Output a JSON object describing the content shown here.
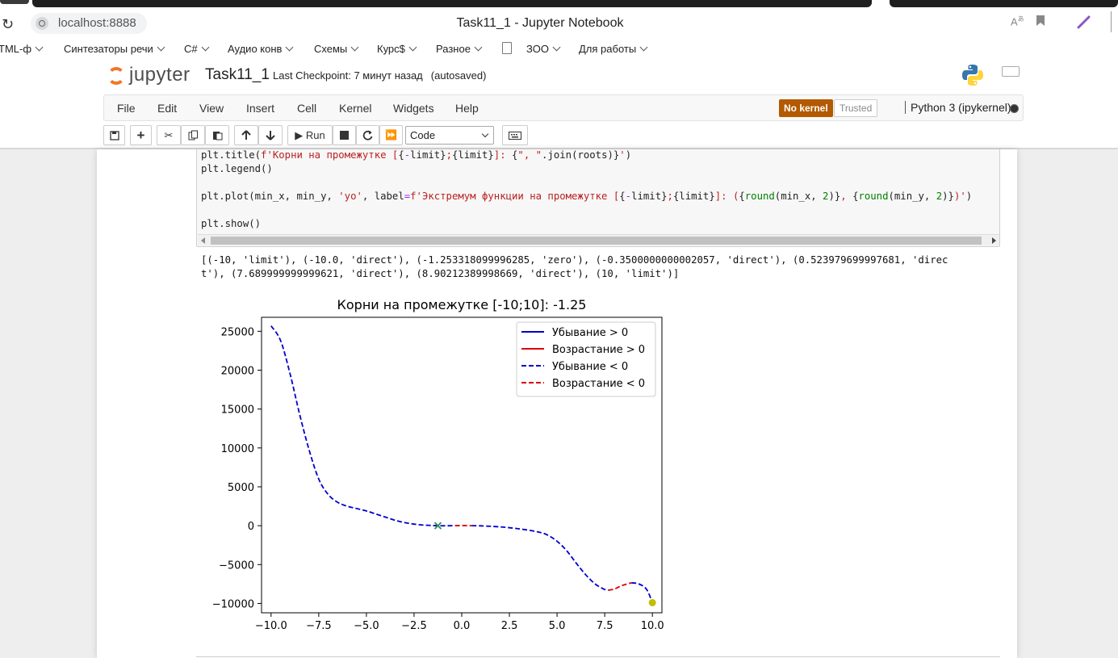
{
  "browser": {
    "url": "localhost:8888",
    "window_title": "Task11_1 - Jupyter Notebook",
    "bookmarks": [
      {
        "label": "ТML-ф",
        "dropdown": true
      },
      {
        "label": "Синтезаторы речи",
        "dropdown": true
      },
      {
        "label": "C#",
        "dropdown": true
      },
      {
        "label": "Аудио конв",
        "dropdown": true
      },
      {
        "label": "Схемы",
        "dropdown": true
      },
      {
        "label": "Курс$",
        "dropdown": true
      },
      {
        "label": "Разное",
        "dropdown": true
      },
      {
        "label": "ЗОО",
        "dropdown": true
      },
      {
        "label": "Для работы",
        "dropdown": true
      }
    ]
  },
  "jupyter": {
    "logo_text": "jupyter",
    "notebook_name": "Task11_1",
    "checkpoint": "Last Checkpoint: 7 минут назад",
    "autosaved": "(autosaved)",
    "menu": [
      "File",
      "Edit",
      "View",
      "Insert",
      "Cell",
      "Kernel",
      "Widgets",
      "Help"
    ],
    "no_kernel": "No kernel",
    "trusted": "Trusted",
    "kernel_name": "Python 3 (ipykernel)",
    "toolbar": {
      "run_label": "Run",
      "cell_type": "Code"
    }
  },
  "code_lines": [
    "plt.title(f'Корни на промежутке [{-limit};{limit}]: {\", \".join(roots)}')",
    "plt.legend()",
    "",
    "plt.plot(min_x, min_y, 'yo', label=f'Экстремум функции на промежутке [{-limit};{limit}]: ({round(min_x, 2)}, {round(min_y, 2)})')",
    "",
    "plt.show()"
  ],
  "output_lines": [
    "[(-10, 'limit'), (-10.0, 'direct'), (-1.253318099996285, 'zero'), (-0.3500000000002057, 'direct'), (0.523979699997681, 'direc",
    "t'), (7.689999999999621, 'direct'), (8.90212389998669, 'direct'), (10, 'limit')]"
  ],
  "chart_data": {
    "type": "line",
    "title": "Корни на промежутке [-10;10]: -1.25",
    "xlim": [
      -10.5,
      10.5
    ],
    "ylim": [
      -11200,
      26800
    ],
    "xticks": [
      -10.0,
      -7.5,
      -5.0,
      -2.5,
      0.0,
      2.5,
      5.0,
      7.5,
      10.0
    ],
    "xtick_labels": [
      "−10.0",
      "−7.5",
      "−5.0",
      "−2.5",
      "0.0",
      "2.5",
      "5.0",
      "7.5",
      "10.0"
    ],
    "yticks": [
      25000,
      20000,
      15000,
      10000,
      5000,
      0,
      -5000,
      -10000
    ],
    "ytick_labels": [
      "25000",
      "20000",
      "15000",
      "10000",
      "5000",
      "0",
      "−5000",
      "−10000"
    ],
    "grid": false,
    "legend_position": "top-right",
    "legend": [
      {
        "label": "Убывание > 0",
        "color": "#0000cc",
        "dash": "solid"
      },
      {
        "label": "Возрастание > 0",
        "color": "#dd0000",
        "dash": "solid"
      },
      {
        "label": "Убывание < 0",
        "color": "#0000cc",
        "dash": "dashed"
      },
      {
        "label": "Возрастание < 0",
        "color": "#dd0000",
        "dash": "dashed"
      }
    ],
    "series": [
      {
        "name": "Убывание < 0",
        "color": "#0000cc",
        "dash": "dashed",
        "x": [
          -10,
          -9.5,
          -9.0,
          -8.5,
          -8.0,
          -7.5,
          -7.0,
          -6.5,
          -6.0,
          -5.5,
          -5.0,
          -4.5,
          -4.0,
          -3.5,
          -3.0,
          -2.5,
          -2.0,
          -1.5,
          -1.25,
          -1.0,
          -0.35
        ],
        "y": [
          25700,
          23800,
          19500,
          14300,
          9700,
          6000,
          4000,
          3000,
          2500,
          2200,
          1900,
          1500,
          1100,
          700,
          400,
          200,
          80,
          20,
          0,
          -10,
          5
        ]
      },
      {
        "name": "Возрастание < 0",
        "color": "#dd0000",
        "dash": "dashed",
        "x": [
          -0.35,
          0.0,
          0.52
        ],
        "y": [
          5,
          20,
          0
        ]
      },
      {
        "name": "Убывание < 0",
        "color": "#0000cc",
        "dash": "dashed",
        "x": [
          0.52,
          1.0,
          2.0,
          3.0,
          4.0,
          4.5,
          5.0,
          5.5,
          6.0,
          6.5,
          7.0,
          7.5,
          7.69
        ],
        "y": [
          0,
          -20,
          -150,
          -400,
          -800,
          -1200,
          -2000,
          -3200,
          -4800,
          -6300,
          -7500,
          -8200,
          -8300
        ]
      },
      {
        "name": "Возрастание < 0",
        "color": "#dd0000",
        "dash": "dashed",
        "x": [
          7.69,
          8.0,
          8.4,
          8.9
        ],
        "y": [
          -8300,
          -8150,
          -7700,
          -7350
        ]
      },
      {
        "name": "Убывание < 0",
        "color": "#0000cc",
        "dash": "dashed",
        "x": [
          8.9,
          9.3,
          9.7,
          10.0
        ],
        "y": [
          -7350,
          -7500,
          -8200,
          -9900
        ]
      }
    ],
    "markers": [
      {
        "name": "root",
        "shape": "x",
        "color": "#2e8b57",
        "x": -1.25,
        "y": 0
      },
      {
        "name": "extremum",
        "shape": "circle",
        "color": "#bfbf00",
        "x": 10.0,
        "y": -9900
      }
    ]
  }
}
